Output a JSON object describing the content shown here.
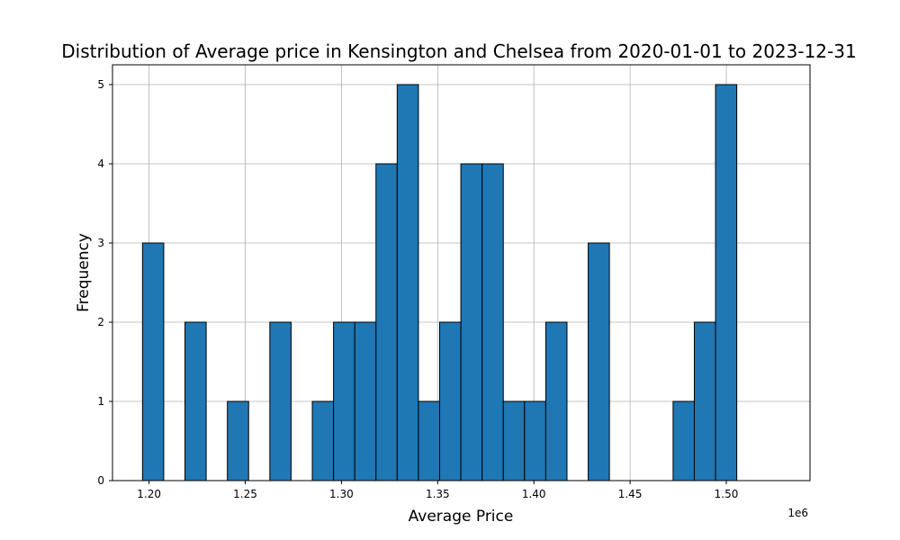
{
  "chart_data": {
    "type": "bar",
    "title": "Distribution of Average price in Kensington and Chelsea from 2020-01-01 to 2023-12-31",
    "xlabel": "Average Price",
    "ylabel": "Frequency",
    "x_offset_label": "1e6",
    "xlim": [
      1.181,
      1.5435
    ],
    "ylim": [
      0,
      5.25
    ],
    "x_ticks": [
      {
        "value": 1.2,
        "label": "1.20"
      },
      {
        "value": 1.25,
        "label": "1.25"
      },
      {
        "value": 1.3,
        "label": "1.30"
      },
      {
        "value": 1.35,
        "label": "1.35"
      },
      {
        "value": 1.4,
        "label": "1.40"
      },
      {
        "value": 1.45,
        "label": "1.45"
      },
      {
        "value": 1.5,
        "label": "1.50"
      }
    ],
    "y_ticks": [
      {
        "value": 0,
        "label": "0"
      },
      {
        "value": 1,
        "label": "1"
      },
      {
        "value": 2,
        "label": "2"
      },
      {
        "value": 3,
        "label": "3"
      },
      {
        "value": 4,
        "label": "4"
      },
      {
        "value": 5,
        "label": "5"
      }
    ],
    "grid": true,
    "bin_start": 1.1966,
    "bin_width": 0.01103,
    "bin_counts": [
      3,
      0,
      2,
      0,
      1,
      0,
      2,
      0,
      1,
      2,
      2,
      4,
      5,
      1,
      2,
      4,
      4,
      1,
      1,
      2,
      0,
      3,
      0,
      0,
      0,
      1,
      2,
      5
    ],
    "colors": {
      "bar": "#1f77b4",
      "edge": "#000000",
      "grid": "#b0b0b0"
    }
  }
}
